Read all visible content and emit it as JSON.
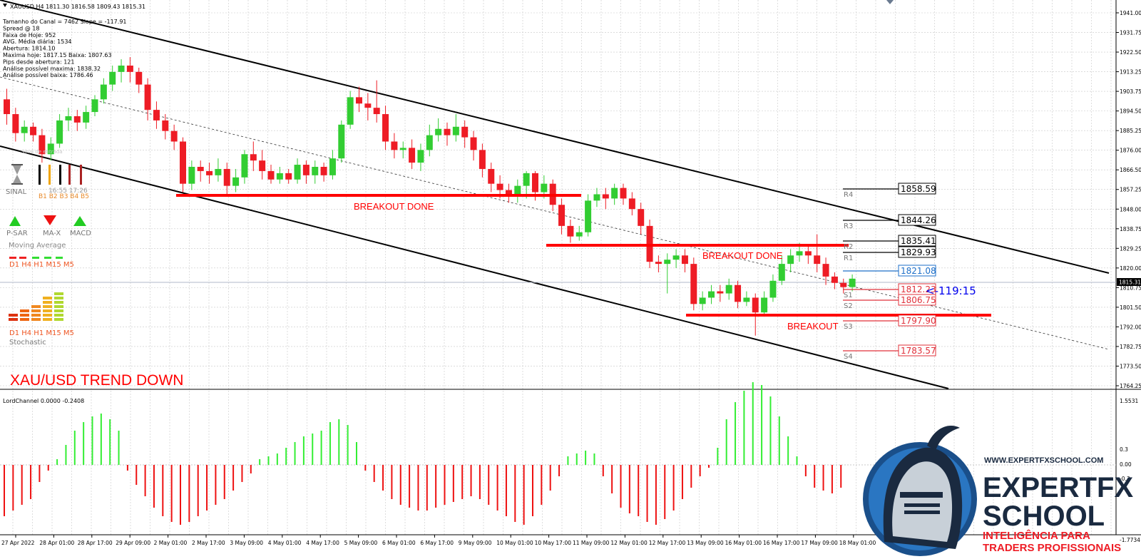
{
  "chart": {
    "header": "XAUUSD,H4  1811.30 1816.58 1809.43 1815.31",
    "info_lines": [
      "Tamanho do Canal = 7462 Slope = -117.91",
      "Spread @ 18",
      "Faixa de Hoje: 952",
      "AVG. Média diária: 1534",
      "Abertura: 1814.10",
      "Maxima hoje: 1817.15  Baixa: 1807.63",
      "Pips desde abertura: 121",
      "Análise possível maxima: 1838.32",
      "Análise possível baixa: 1786.46"
    ],
    "watermark_title": "XAU/USD TREND DOWN",
    "timer": "<-119:15",
    "current_price": "1815.31",
    "colors": {
      "bull": "#32cd32",
      "bear": "#ee1c25",
      "channel": "#000000",
      "breakout": "#ff0000",
      "grid": "#c8c8c8"
    }
  },
  "y_axis_main": [
    "1941.00",
    "1931.75",
    "1922.50",
    "1913.25",
    "1903.75",
    "1894.50",
    "1885.25",
    "1876.00",
    "1866.50",
    "1857.25",
    "1848.00",
    "1838.75",
    "1829.25",
    "1820.00",
    "1810.75",
    "1801.50",
    "1792.00",
    "1782.75",
    "1773.50",
    "1764.25"
  ],
  "y_axis_sub": [
    "1.5531",
    "0.3",
    "0.00",
    "-0.3",
    "-1.7734"
  ],
  "x_axis": [
    "27 Apr 2022",
    "28 Apr 01:00",
    "28 Apr 17:00",
    "29 Apr 09:00",
    "2 May 01:00",
    "2 May 17:00",
    "3 May 09:00",
    "4 May 01:00",
    "4 May 17:00",
    "5 May 09:00",
    "6 May 01:00",
    "6 May 17:00",
    "9 May 09:00",
    "10 May 01:00",
    "10 May 17:00",
    "11 May 09:00",
    "12 May 01:00",
    "12 May 17:00",
    "13 May 09:00",
    "16 May 01:00",
    "16 May 17:00",
    "17 May 09:00",
    "18 May 01:00"
  ],
  "annotations": {
    "breakout_1": "BREAKOUT DONE",
    "breakout_2": "BREAKOUT DONE",
    "breakout_3": "BREAKOUT"
  },
  "pivots": [
    {
      "name": "R4",
      "value": "1858.59",
      "color": "#000000"
    },
    {
      "name": "R3",
      "value": "1844.26",
      "color": "#000000"
    },
    {
      "name": "R2",
      "value": "1835.41",
      "color": "#000000"
    },
    {
      "name": "R1",
      "value": "1829.93",
      "color": "#000000"
    },
    {
      "name": "",
      "value": "1821.08",
      "color": "#1e6fc8"
    },
    {
      "name": "S1",
      "value": "1812.23",
      "color": "#e0303a"
    },
    {
      "name": "S2",
      "value": "1806.75",
      "color": "#e0303a"
    },
    {
      "name": "S3",
      "value": "1797.90",
      "color": "#e0303a"
    },
    {
      "name": "S4",
      "value": "1783.57",
      "color": "#e0303a"
    }
  ],
  "panel": {
    "sinal_label": "SINAL",
    "sinal_values": "16:55  17:26",
    "sinal_b": "B1 B2 B3 B4 B5",
    "psar": "P-SAR",
    "ma_x": "MA-X",
    "macd": "MACD",
    "moving_average": "Moving Average",
    "tf_row_1": "D1 H4 H1 M15  M5",
    "tf_row_2": "D1 H4 H1 M15  M5",
    "stochastic": "Stochastic"
  },
  "indicator": {
    "label": "LordChannel 0.0000 -0.2408",
    "histogram": [
      -0.9,
      -0.8,
      -0.7,
      -0.6,
      -0.3,
      -0.1,
      0.1,
      0.35,
      0.6,
      0.75,
      0.85,
      0.9,
      0.8,
      0.6,
      -0.1,
      -0.35,
      -0.55,
      -0.75,
      -0.9,
      -1.0,
      -1.05,
      -1.0,
      -0.9,
      -0.8,
      -0.7,
      -0.6,
      -0.45,
      -0.3,
      -0.15,
      0.1,
      0.15,
      0.2,
      0.3,
      0.4,
      0.5,
      0.55,
      0.6,
      0.75,
      0.8,
      0.7,
      0.4,
      -0.1,
      -0.3,
      -0.45,
      -0.6,
      -0.7,
      -0.75,
      -0.8,
      -0.8,
      -0.75,
      -0.7,
      -0.65,
      -0.6,
      -0.55,
      -0.6,
      -0.7,
      -0.8,
      -0.9,
      -1.0,
      -1.05,
      -0.9,
      -0.7,
      -0.45,
      -0.2,
      0.15,
      0.2,
      0.25,
      0.2,
      -0.2,
      -0.5,
      -0.75,
      -0.85,
      -0.9,
      -1.0,
      -1.05,
      -0.95,
      -0.8,
      -0.6,
      -0.4,
      -0.2,
      -0.05,
      0.3,
      0.8,
      1.1,
      1.3,
      1.45,
      1.4,
      1.2,
      0.85,
      0.5,
      0.15,
      -0.2,
      -0.4,
      -0.45,
      -0.5,
      -0.4
    ]
  },
  "logo": {
    "url": "WWW.EXPERTFXSCHOOL.COM",
    "line1": "EXPERTFX",
    "line2": "SCHOOL",
    "tagline1": "INTELIGÊNCIA PARA",
    "tagline2": "TRADERS PROFISSIONAIS"
  }
}
